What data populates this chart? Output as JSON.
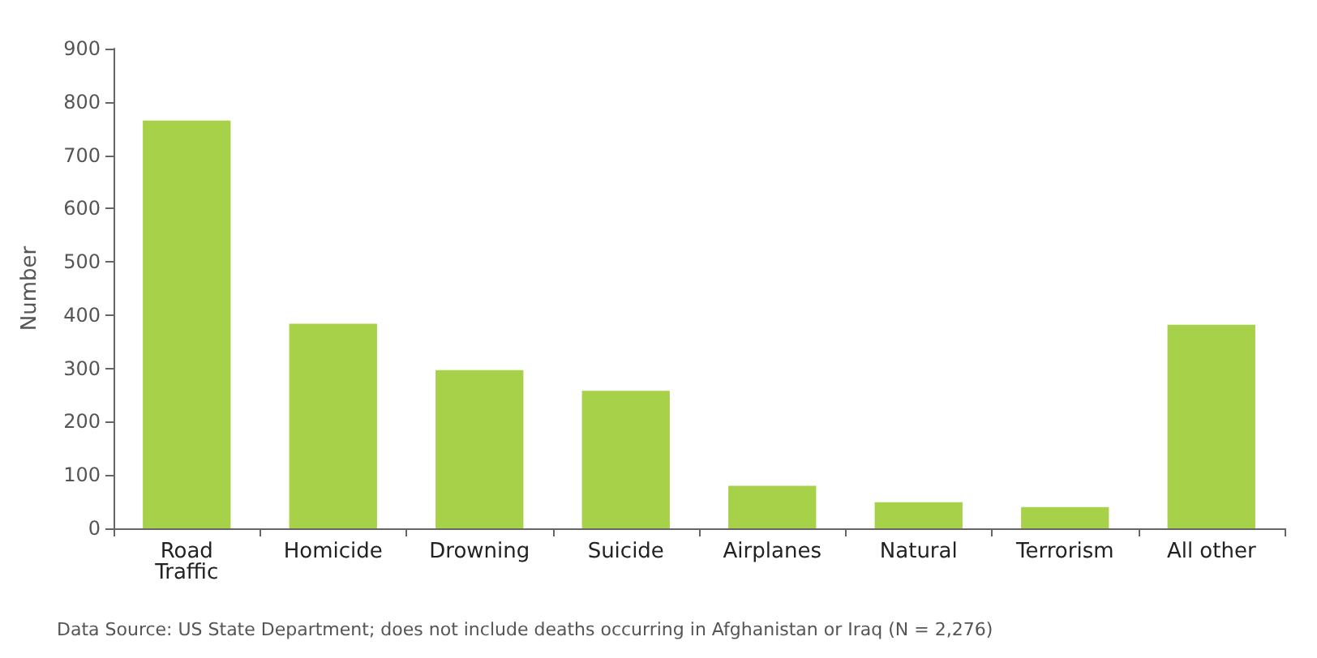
{
  "chart_data": {
    "type": "bar",
    "ylabel": "Number",
    "categories": [
      "Road\nTraffic",
      "Homicide",
      "Drowning",
      "Suicide",
      "Airplanes",
      "Natural",
      "Terrorism",
      "All other"
    ],
    "values": [
      765,
      384,
      297,
      258,
      80,
      49,
      40,
      382
    ],
    "color": "#a8d14a",
    "ylim": [
      0,
      900
    ],
    "yticks": [
      0,
      100,
      200,
      300,
      400,
      500,
      600,
      700,
      800,
      900
    ],
    "grid": false,
    "annotations": [
      "Data Source: US State Department; does not include deaths occurring in Afghanistan or Iraq (N = 2,276)"
    ]
  }
}
